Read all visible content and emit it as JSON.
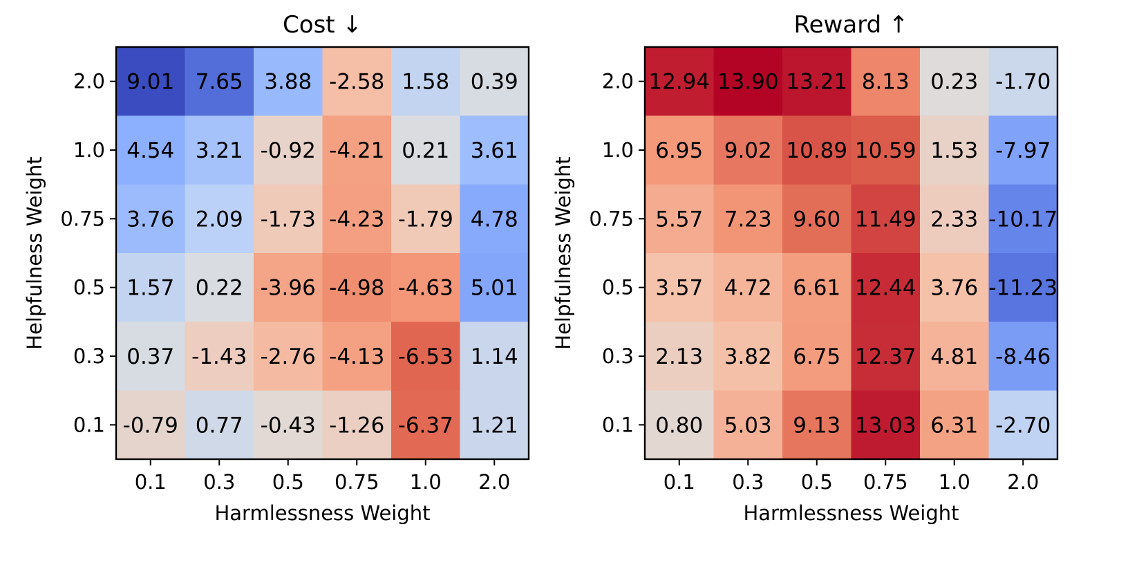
{
  "chart_data": [
    {
      "type": "heatmap",
      "title": "Cost ↓",
      "xlabel": "Harmlessness Weight",
      "ylabel": "Helpfulness Weight",
      "x_categories": [
        "0.1",
        "0.3",
        "0.5",
        "0.75",
        "1.0",
        "2.0"
      ],
      "y_categories": [
        "2.0",
        "1.0",
        "0.75",
        "0.5",
        "0.3",
        "0.1"
      ],
      "values": [
        [
          9.01,
          7.65,
          3.88,
          -2.58,
          1.58,
          0.39
        ],
        [
          4.54,
          3.21,
          -0.92,
          -4.21,
          0.21,
          3.61
        ],
        [
          3.76,
          2.09,
          -1.73,
          -4.23,
          -1.79,
          4.78
        ],
        [
          1.57,
          0.22,
          -3.96,
          -4.98,
          -4.63,
          5.01
        ],
        [
          0.37,
          -1.43,
          -2.76,
          -4.13,
          -6.53,
          1.14
        ],
        [
          -0.79,
          0.77,
          -0.43,
          -1.26,
          -6.37,
          1.21
        ]
      ],
      "colormap": "coolwarm",
      "color_reversed": true
    },
    {
      "type": "heatmap",
      "title": "Reward ↑",
      "xlabel": "Harmlessness Weight",
      "ylabel": "Helpfulness Weight",
      "x_categories": [
        "0.1",
        "0.3",
        "0.5",
        "0.75",
        "1.0",
        "2.0"
      ],
      "y_categories": [
        "2.0",
        "1.0",
        "0.75",
        "0.5",
        "0.3",
        "0.1"
      ],
      "values": [
        [
          12.94,
          13.9,
          13.21,
          8.13,
          0.23,
          -1.7
        ],
        [
          6.95,
          9.02,
          10.89,
          10.59,
          1.53,
          -7.97
        ],
        [
          5.57,
          7.23,
          9.6,
          11.49,
          2.33,
          -10.17
        ],
        [
          3.57,
          4.72,
          6.61,
          12.44,
          3.76,
          -11.23
        ],
        [
          2.13,
          3.82,
          6.75,
          12.37,
          4.81,
          -8.46
        ],
        [
          0.8,
          5.03,
          9.13,
          13.03,
          6.31,
          -2.7
        ]
      ],
      "colormap": "coolwarm",
      "color_reversed": false
    }
  ]
}
